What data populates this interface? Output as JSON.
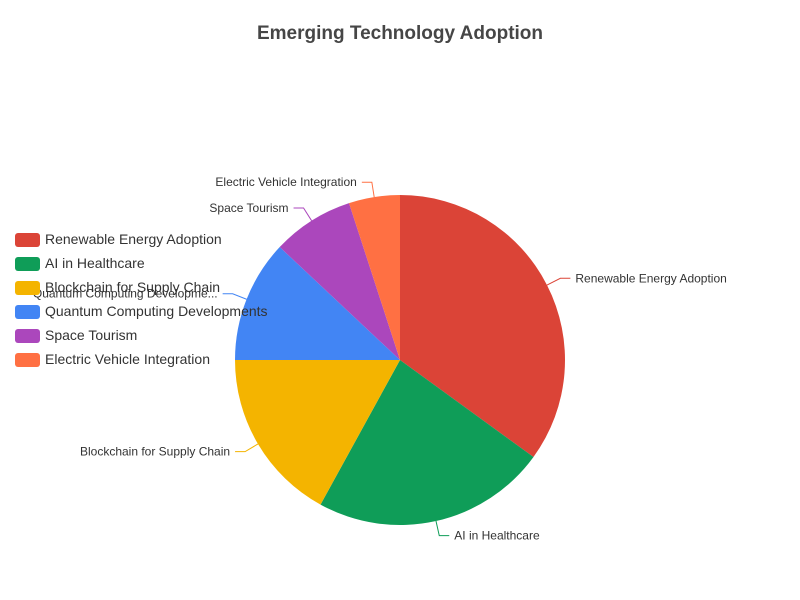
{
  "chart_data": {
    "type": "pie",
    "title": "Emerging Technology Adoption",
    "categories": [
      "Renewable Energy Adoption",
      "AI in Healthcare",
      "Blockchain for Supply Chain",
      "Quantum Computing Developments",
      "Space Tourism",
      "Electric Vehicle Integration"
    ],
    "values": [
      35,
      23,
      17,
      12,
      8,
      5
    ],
    "unit": "%",
    "colors": [
      "#db4437",
      "#0f9d58",
      "#f4b400",
      "#4285f4",
      "#ab47bc",
      "#ff7043"
    ],
    "slice_labels": [
      "Renewable Energy Adoption",
      "AI in Healthcare",
      "Blockchain for Supply Chain",
      "Quantum Computing Developme...",
      "Space Tourism",
      "Electric Vehicle Integration"
    ],
    "legend": {
      "position": "left",
      "orientation": "vertical"
    },
    "start_angle_deg": 90,
    "direction": "clockwise"
  }
}
